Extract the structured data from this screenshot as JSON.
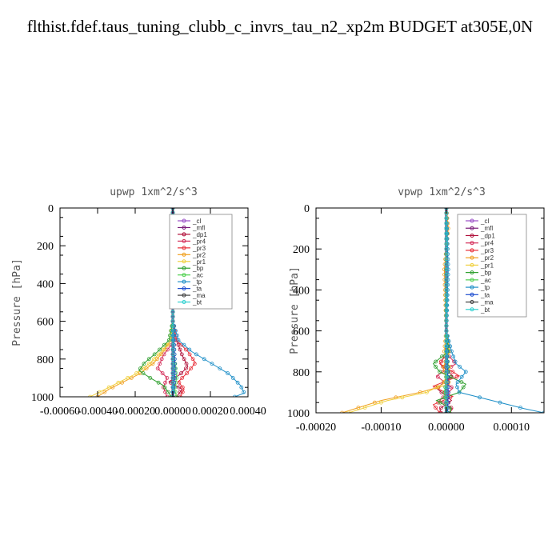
{
  "figure_title": "flthist.fdef.taus_tuning_clubb_c_invrs_tau_n2_xp2m  BUDGET at305E,0N",
  "legend_colors": {
    "_cl": "#9b4fc8",
    "_mfl": "#7a1c7a",
    "_dp1": "#b0103a",
    "_pr4": "#d42e5a",
    "_pr3": "#e8303a",
    "_pr2": "#f0a020",
    "_pr1": "#f0d040",
    "_bp": "#30a030",
    "_ac": "#50d050",
    "_tp": "#2090c8",
    "_ta": "#2050d0",
    "_ma": "#404040",
    "_bt": "#30d0d0"
  },
  "chart_data": [
    {
      "type": "line",
      "title": "upwp   1xm^2/s^3",
      "ylabel": "Pressure [hPa]",
      "xlabel": "",
      "xlim": [
        -0.0006,
        0.0004
      ],
      "ylim": [
        1000,
        0
      ],
      "xticks": [
        -0.0006,
        -0.0004,
        -0.0002,
        0.0,
        0.0002,
        0.0004
      ],
      "xtick_labels": [
        "-0.00060",
        "-0.00040",
        "-0.00020",
        "0.00000",
        "0.00020",
        "0.00040"
      ],
      "yticks": [
        0,
        200,
        400,
        600,
        800,
        1000
      ],
      "ytick_labels": [
        "0",
        "200",
        "400",
        "600",
        "800",
        "1000"
      ],
      "legend_position": "top-right",
      "legend": [
        "_cl",
        "_mfl",
        "_dp1",
        "_pr4",
        "_pr3",
        "_pr2",
        "_pr1",
        "_bp",
        "_ac",
        "_tp",
        "_ta",
        "_ma",
        "_bt"
      ],
      "series": [
        {
          "name": "_cl",
          "p": [
            0,
            200,
            400,
            600,
            800,
            1000
          ],
          "values": [
            0,
            0,
            0,
            0,
            0,
            0
          ]
        },
        {
          "name": "_mfl",
          "p": [
            0,
            200,
            400,
            600,
            800,
            1000
          ],
          "values": [
            0,
            0,
            0,
            0,
            0,
            0
          ]
        },
        {
          "name": "_dp1",
          "p": [
            0,
            600,
            700,
            780,
            840,
            880,
            920,
            960,
            1000
          ],
          "values": [
            0,
            0,
            2e-05,
            5e-05,
            8e-05,
            4e-05,
            -2e-05,
            5e-05,
            2e-05
          ]
        },
        {
          "name": "_pr4",
          "p": [
            0,
            600,
            700,
            780,
            850,
            900,
            950,
            1000
          ],
          "values": [
            0,
            0,
            1e-05,
            -5e-05,
            -8e-05,
            -3e-05,
            -5e-05,
            -3e-05
          ]
        },
        {
          "name": "_pr3",
          "p": [
            0,
            600,
            700,
            760,
            820,
            870,
            920,
            960,
            1000
          ],
          "values": [
            0,
            0,
            2e-05,
            8e-05,
            0.00012,
            8e-05,
            3e-05,
            6e-05,
            4e-05
          ]
        },
        {
          "name": "_pr2",
          "p": [
            0,
            600,
            700,
            760,
            820,
            880,
            920,
            960,
            1000
          ],
          "values": [
            0,
            0,
            -1e-05,
            -5e-05,
            -0.0001,
            -0.00018,
            -0.00026,
            -0.00034,
            -0.0004
          ]
        },
        {
          "name": "_pr1",
          "p": [
            0,
            600,
            700,
            760,
            820,
            880,
            920,
            960,
            1000
          ],
          "values": [
            0,
            0,
            -1e-05,
            -6e-05,
            -0.00012,
            -0.0002,
            -0.00028,
            -0.00036,
            -0.00044
          ]
        },
        {
          "name": "_bp",
          "p": [
            0,
            600,
            700,
            760,
            820,
            860,
            900,
            940,
            980,
            1000
          ],
          "values": [
            0,
            0,
            -2e-05,
            -8e-05,
            -0.00015,
            -0.00018,
            -0.00012,
            -5e-05,
            -2e-05,
            -1e-05
          ]
        },
        {
          "name": "_ac",
          "p": [
            0,
            600,
            800,
            900,
            960,
            1000
          ],
          "values": [
            0,
            0,
            1e-05,
            2e-05,
            1e-05,
            2e-05
          ]
        },
        {
          "name": "_tp",
          "p": [
            0,
            600,
            700,
            760,
            820,
            880,
            940,
            980,
            1000
          ],
          "values": [
            0,
            0,
            3e-05,
            0.0001,
            0.0002,
            0.0003,
            0.00036,
            0.00038,
            0.00033
          ]
        },
        {
          "name": "_ta",
          "p": [
            0,
            600,
            800,
            900,
            1000
          ],
          "values": [
            0,
            0,
            1e-05,
            1e-05,
            0.0
          ]
        },
        {
          "name": "_ma",
          "p": [
            0,
            1000
          ],
          "values": [
            0,
            0
          ]
        },
        {
          "name": "_bt",
          "p": [
            0,
            1000
          ],
          "values": [
            0,
            0
          ]
        }
      ]
    },
    {
      "type": "line",
      "title": "vpwp   1xm^2/s^3",
      "ylabel": "Pressure [hPa]",
      "xlabel": "",
      "xlim": [
        -0.0002,
        0.00015
      ],
      "ylim": [
        1000,
        0
      ],
      "xticks": [
        -0.0002,
        -0.0001,
        0.0,
        0.0001
      ],
      "xtick_labels": [
        "-0.00020",
        "-0.00010",
        "0.00000",
        "0.00010"
      ],
      "yticks": [
        0,
        200,
        400,
        600,
        800,
        1000
      ],
      "ytick_labels": [
        "0",
        "200",
        "400",
        "600",
        "800",
        "1000"
      ],
      "legend_position": "top-right",
      "legend": [
        "_cl",
        "_mfl",
        "_dp1",
        "_pr4",
        "_pr3",
        "_pr2",
        "_pr1",
        "_bp",
        "_ac",
        "_tp",
        "_ta",
        "_ma",
        "_bt"
      ],
      "series": [
        {
          "name": "_cl",
          "p": [
            0,
            200,
            400,
            600,
            800,
            1000
          ],
          "values": [
            0,
            0,
            0,
            0,
            0,
            0
          ]
        },
        {
          "name": "_mfl",
          "p": [
            0,
            200,
            400,
            600,
            800,
            1000
          ],
          "values": [
            0,
            0,
            0,
            0,
            0,
            0
          ]
        },
        {
          "name": "_dp1",
          "p": [
            0,
            600,
            700,
            760,
            820,
            880,
            940,
            980,
            1000
          ],
          "values": [
            0,
            0,
            3e-06,
            -1e-05,
            1e-05,
            -1.5e-05,
            8e-06,
            -1e-05,
            -8e-06
          ]
        },
        {
          "name": "_pr4",
          "p": [
            0,
            600,
            700,
            760,
            820,
            880,
            940,
            980,
            1000
          ],
          "values": [
            0,
            0,
            -3e-06,
            1.5e-05,
            -1.5e-05,
            1e-05,
            -1e-05,
            1e-05,
            5e-06
          ]
        },
        {
          "name": "_pr3",
          "p": [
            0,
            600,
            700,
            760,
            820,
            870,
            920,
            960,
            1000
          ],
          "values": [
            0,
            0,
            3e-06,
            -1e-05,
            2e-05,
            -2e-05,
            1e-05,
            -2e-05,
            -1e-05
          ]
        },
        {
          "name": "_pr2",
          "p": [
            0,
            100,
            300,
            600,
            700,
            780,
            860,
            900,
            940,
            980,
            1000
          ],
          "values": [
            0,
            3e-06,
            -3e-06,
            0,
            5e-06,
            -5e-06,
            5e-06,
            -4e-05,
            -0.0001,
            -0.00014,
            -0.00016
          ]
        },
        {
          "name": "_pr1",
          "p": [
            0,
            600,
            700,
            780,
            860,
            900,
            940,
            980,
            1000
          ],
          "values": [
            0,
            0,
            -3e-06,
            5e-06,
            -5e-06,
            -3e-05,
            -9e-05,
            -0.00013,
            -0.00015
          ]
        },
        {
          "name": "_bp",
          "p": [
            0,
            600,
            700,
            760,
            800,
            860,
            900,
            940,
            980,
            1000
          ],
          "values": [
            0,
            0,
            3e-06,
            -2e-05,
            -1e-05,
            3e-05,
            2e-05,
            -1.5e-05,
            8e-06,
            5e-06
          ]
        },
        {
          "name": "_ac",
          "p": [
            0,
            600,
            800,
            900,
            1000
          ],
          "values": [
            0,
            0,
            3e-06,
            -3e-06,
            2e-06
          ]
        },
        {
          "name": "_tp",
          "p": [
            0,
            300,
            600,
            700,
            760,
            800,
            860,
            900,
            940,
            980,
            1000
          ],
          "values": [
            0,
            3e-06,
            0,
            8e-06,
            1.5e-05,
            3e-05,
            1.5e-05,
            2e-05,
            7e-05,
            0.00012,
            0.00015
          ]
        },
        {
          "name": "_ta",
          "p": [
            0,
            600,
            800,
            900,
            1000
          ],
          "values": [
            0,
            0,
            2e-06,
            3e-06,
            2e-06
          ]
        },
        {
          "name": "_ma",
          "p": [
            0,
            1000
          ],
          "values": [
            0,
            0
          ]
        },
        {
          "name": "_bt",
          "p": [
            0,
            1000
          ],
          "values": [
            0,
            0
          ]
        }
      ]
    }
  ]
}
